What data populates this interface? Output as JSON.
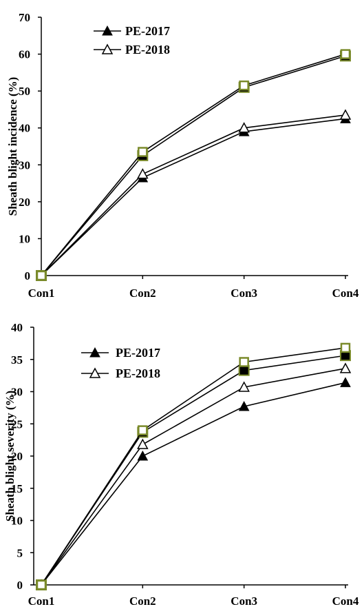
{
  "chart_data": [
    {
      "type": "line",
      "categories": [
        "Con1",
        "Con2",
        "Con3",
        "Con4"
      ],
      "ylabel": "Sheath blight incidence (%)",
      "xlabel": "",
      "ylim": [
        0,
        70
      ],
      "yticks": [
        0,
        10,
        20,
        30,
        40,
        50,
        60,
        70
      ],
      "grid": false,
      "legend": {
        "placement": "top-left",
        "entries": [
          "PE-2017",
          "PE-2018"
        ]
      },
      "series": [
        {
          "name": "PE-2017",
          "marker": "filled-triangle",
          "values": [
            0,
            26.5,
            39,
            42.5
          ]
        },
        {
          "name": "PE-2018",
          "marker": "open-triangle",
          "values": [
            0,
            27.5,
            40,
            43.5
          ]
        },
        {
          "marker": "filled-square",
          "values": [
            0,
            32.5,
            51,
            59.5
          ]
        },
        {
          "marker": "open-square",
          "values": [
            0,
            33.5,
            51.5,
            60
          ]
        }
      ]
    },
    {
      "type": "line",
      "categories": [
        "Con1",
        "Con2",
        "Con3",
        "Con4"
      ],
      "ylabel": "Sheath blight severity (%)",
      "xlabel": "",
      "ylim": [
        0,
        40
      ],
      "yticks": [
        0,
        5,
        10,
        15,
        20,
        25,
        30,
        35,
        40
      ],
      "grid": false,
      "legend": {
        "placement": "top-left",
        "entries": [
          "PE-2017",
          "PE-2018"
        ]
      },
      "series": [
        {
          "name": "PE-2017",
          "marker": "filled-triangle",
          "values": [
            0,
            20,
            27.7,
            31.4
          ]
        },
        {
          "name": "PE-2018",
          "marker": "open-triangle",
          "values": [
            0,
            21.8,
            30.7,
            33.6
          ]
        },
        {
          "marker": "filled-square",
          "values": [
            0,
            23.7,
            33.3,
            35.6
          ]
        },
        {
          "marker": "open-square",
          "values": [
            0,
            24,
            34.6,
            36.8
          ]
        }
      ]
    }
  ],
  "colors": {
    "line": "#000000",
    "square_outline": "#7a8a2a"
  }
}
